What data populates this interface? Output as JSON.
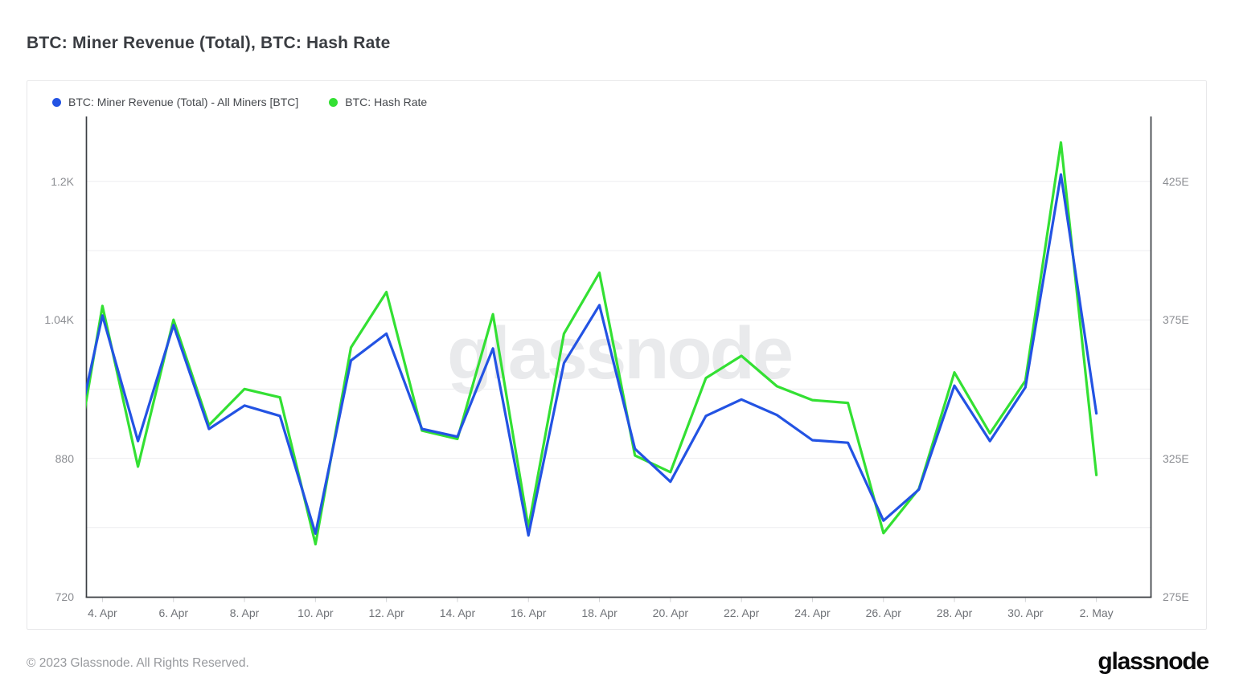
{
  "page": {
    "title": "BTC: Miner Revenue (Total), BTC: Hash Rate"
  },
  "watermark": {
    "text": "glassnode"
  },
  "footer": {
    "copyright": "© 2023 Glassnode. All Rights Reserved.",
    "logo_text": "glassnode"
  },
  "chart_data": {
    "type": "line",
    "title": "BTC: Miner Revenue (Total), BTC: Hash Rate",
    "legend_position": "top-left",
    "grid": {
      "values": [
        1200,
        1120,
        1040,
        960,
        880,
        800
      ]
    },
    "x": [
      "3. Apr",
      "4. Apr",
      "5. Apr",
      "6. Apr",
      "7. Apr",
      "8. Apr",
      "9. Apr",
      "10. Apr",
      "11. Apr",
      "12. Apr",
      "13. Apr",
      "14. Apr",
      "15. Apr",
      "16. Apr",
      "17. Apr",
      "18. Apr",
      "19. Apr",
      "20. Apr",
      "21. Apr",
      "22. Apr",
      "23. Apr",
      "24. Apr",
      "25. Apr",
      "26. Apr",
      "27. Apr",
      "28. Apr",
      "29. Apr",
      "30. Apr",
      "1. May",
      "2. May"
    ],
    "series": [
      {
        "name": "BTC: Miner Revenue (Total) - All Miners [BTC]",
        "color": "#2353e3",
        "axis": "left",
        "values": [
          858,
          1045,
          900,
          1034,
          914,
          941,
          929,
          793,
          993,
          1024,
          914,
          905,
          1007,
          791,
          990,
          1057,
          891,
          853,
          929,
          948,
          930,
          901,
          898,
          808,
          844,
          964,
          900,
          962,
          1208,
          932
        ]
      },
      {
        "name": "BTC: Hash Rate",
        "color": "#33e033",
        "axis": "right",
        "values": [
          305,
          380,
          322,
          375,
          337,
          350,
          347,
          294,
          365,
          385,
          335,
          332,
          377,
          300,
          370,
          392,
          326,
          320,
          354,
          362,
          351,
          346,
          345,
          298,
          314,
          356,
          334,
          353,
          439,
          319
        ]
      }
    ],
    "axes": {
      "left": {
        "min": 720,
        "max": 1275,
        "ticks": [
          {
            "label": "1.2K",
            "value": 1200
          },
          {
            "label": "1.04K",
            "value": 1040
          },
          {
            "label": "880",
            "value": 880
          },
          {
            "label": "720",
            "value": 720
          }
        ]
      },
      "right": {
        "min": 275,
        "max": 448.4,
        "ticks": [
          {
            "label": "425E",
            "value": 425
          },
          {
            "label": "375E",
            "value": 375
          },
          {
            "label": "325E",
            "value": 325
          },
          {
            "label": "275E",
            "value": 275
          }
        ]
      },
      "x_ticks": [
        "4. Apr",
        "6. Apr",
        "8. Apr",
        "10. Apr",
        "12. Apr",
        "14. Apr",
        "16. Apr",
        "18. Apr",
        "20. Apr",
        "22. Apr",
        "24. Apr",
        "26. Apr",
        "28. Apr",
        "30. Apr",
        "2. May"
      ]
    }
  }
}
